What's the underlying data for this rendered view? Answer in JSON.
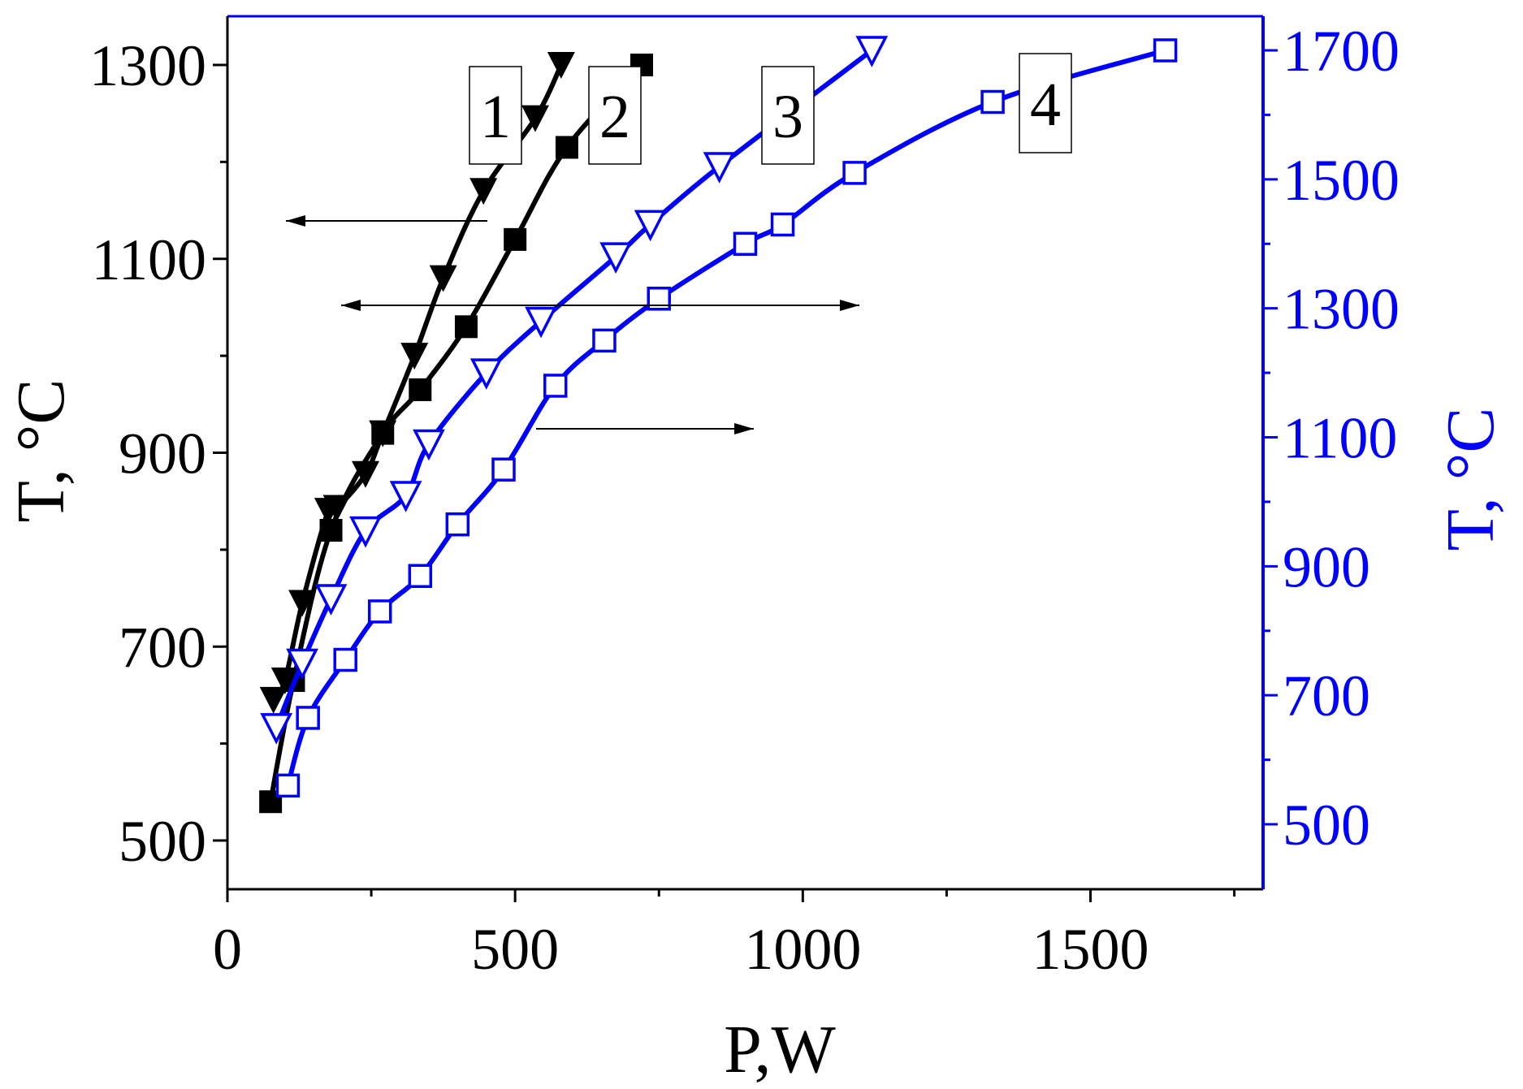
{
  "chart_data": {
    "type": "line",
    "xlabel": "P,W",
    "ylabel_left": "T, °C",
    "ylabel_right": "T, °C",
    "xlim": [
      0,
      1800
    ],
    "ylim_left": [
      450,
      1300
    ],
    "ylim_right": [
      400,
      1700
    ],
    "xticks": [
      0,
      500,
      1000,
      1500
    ],
    "yticks_left": [
      500,
      700,
      900,
      1100,
      1300
    ],
    "yticks_right": [
      500,
      700,
      900,
      1100,
      1300,
      1500,
      1700
    ],
    "grid": false,
    "colors": {
      "left_axis": "#000000",
      "right_axis": "#0000ff"
    },
    "series": [
      {
        "name": "1",
        "axis": "left",
        "color": "#000000",
        "marker": "triangle-down-filled",
        "x": [
          80,
          100,
          130,
          175,
          190,
          240,
          270,
          325,
          375,
          445,
          535,
          580
        ],
        "y": [
          645,
          665,
          745,
          840,
          843,
          878,
          920,
          1000,
          1080,
          1170,
          1245,
          1300
        ]
      },
      {
        "name": "2",
        "axis": "left",
        "color": "#000000",
        "marker": "square-filled",
        "x": [
          75,
          115,
          180,
          270,
          335,
          415,
          500,
          590,
          720
        ],
        "y": [
          540,
          665,
          820,
          920,
          965,
          1030,
          1120,
          1215,
          1300
        ]
      },
      {
        "name": "3",
        "axis": "right",
        "color": "#0000ff",
        "marker": "triangle-down-open",
        "x": [
          85,
          130,
          180,
          240,
          310,
          350,
          450,
          545,
          675,
          735,
          855,
          1120
        ],
        "y": [
          650,
          750,
          850,
          955,
          1010,
          1090,
          1200,
          1280,
          1380,
          1430,
          1520,
          1700
        ]
      },
      {
        "name": "4",
        "axis": "right",
        "color": "#0000ff",
        "marker": "square-open",
        "x": [
          105,
          140,
          205,
          265,
          335,
          400,
          480,
          570,
          655,
          750,
          900,
          965,
          1090,
          1330,
          1630
        ],
        "y": [
          560,
          665,
          755,
          830,
          885,
          965,
          1050,
          1180,
          1250,
          1315,
          1400,
          1430,
          1510,
          1620,
          1700
        ]
      }
    ],
    "annotations": {
      "curve_labels": [
        "1",
        "2",
        "3",
        "4"
      ]
    }
  }
}
